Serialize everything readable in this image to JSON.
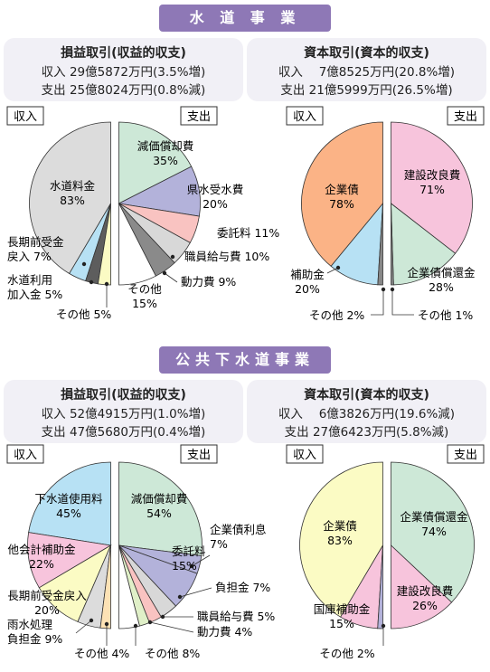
{
  "sections": [
    {
      "banner": "水 道 事 業",
      "panels": [
        {
          "title": "損益取引(収益的収支)",
          "income_line": "収入 29億5872万円(3.5%増)",
          "expense_line": "支出 25億8024万円(0.8%減)"
        },
        {
          "title": "資本取引(資本的収支)",
          "income_line": "収入　 7億8525万円(20.8%増)",
          "expense_line": "支出 21億5999万円(26.5%増)"
        }
      ]
    },
    {
      "banner": "公共下水道事業",
      "panels": [
        {
          "title": "損益取引(収益的収支)",
          "income_line": "収入 52億4915万円(1.0%増)",
          "expense_line": "支出 47億5680万円(0.4%増)"
        },
        {
          "title": "資本取引(資本的収支)",
          "income_line": "収入　 6億3826万円(19.6%減)",
          "expense_line": "支出 27億6423万円(5.8%減)"
        }
      ]
    }
  ],
  "labels": {
    "income": "収入",
    "expense": "支出"
  },
  "chart_data": [
    {
      "type": "pie",
      "title": "水道事業 損益取引(収益的収支)",
      "income": [
        {
          "name": "水道料金",
          "value": 83,
          "color": "#dcdcdc"
        },
        {
          "name": "長期前受金戻入",
          "value": 7,
          "color": "#b7e1f4"
        },
        {
          "name": "水道利用加入金",
          "value": 5,
          "color": "#5d5d5d"
        },
        {
          "name": "その他",
          "value": 5,
          "color": "#fbfbc4"
        }
      ],
      "expense": [
        {
          "name": "減価償却費",
          "value": 35,
          "color": "#cde8d7"
        },
        {
          "name": "県水受水費",
          "value": 20,
          "color": "#b3b2da"
        },
        {
          "name": "委託料",
          "value": 11,
          "color": "#f9c3c1"
        },
        {
          "name": "職員給与費",
          "value": 10,
          "color": "#d8d8d8"
        },
        {
          "name": "動力費",
          "value": 9,
          "color": "#8a8a8a"
        },
        {
          "name": "その他",
          "value": 15,
          "color": "#ffffff"
        }
      ]
    },
    {
      "type": "pie",
      "title": "水道事業 資本取引(資本的収支)",
      "income": [
        {
          "name": "企業債",
          "value": 78,
          "color": "#fbb386"
        },
        {
          "name": "補助金",
          "value": 20,
          "color": "#b7e1f4"
        },
        {
          "name": "その他",
          "value": 2,
          "color": "#888888"
        }
      ],
      "expense": [
        {
          "name": "建設改良費",
          "value": 71,
          "color": "#f7c4dc"
        },
        {
          "name": "企業債償還金",
          "value": 28,
          "color": "#cde8d7"
        },
        {
          "name": "その他",
          "value": 1,
          "color": "#888888"
        }
      ]
    },
    {
      "type": "pie",
      "title": "公共下水道事業 損益取引(収益的収支)",
      "income": [
        {
          "name": "下水道使用料",
          "value": 45,
          "color": "#b7e1f4"
        },
        {
          "name": "他会計補助金",
          "value": 22,
          "color": "#f7c4dc"
        },
        {
          "name": "長期前受金戻入",
          "value": 20,
          "color": "#fbfbc4"
        },
        {
          "name": "雨水処理負担金",
          "value": 9,
          "color": "#dcdcdc"
        },
        {
          "name": "その他",
          "value": 4,
          "color": "#fde2b5"
        }
      ],
      "expense": [
        {
          "name": "減価償却費",
          "value": 54,
          "color": "#cde8d7"
        },
        {
          "name": "企業債利息",
          "value": 7,
          "color": "#b3b2da"
        },
        {
          "name": "委託料",
          "value": 15,
          "color": "#b3b2da"
        },
        {
          "name": "負担金",
          "value": 7,
          "color": "#d8d8d8"
        },
        {
          "name": "職員給与費",
          "value": 5,
          "color": "#f9c3c1"
        },
        {
          "name": "動力費",
          "value": 4,
          "color": "#e0f0c8"
        },
        {
          "name": "その他",
          "value": 8,
          "color": "#ffffff"
        }
      ]
    },
    {
      "type": "pie",
      "title": "公共下水道事業 資本取引(資本的収支)",
      "income": [
        {
          "name": "企業債",
          "value": 83,
          "color": "#fbfbc4"
        },
        {
          "name": "国庫補助金",
          "value": 15,
          "color": "#f7c4dc"
        },
        {
          "name": "その他",
          "value": 2,
          "color": "#b3b2da"
        }
      ],
      "expense": [
        {
          "name": "企業債償還金",
          "value": 74,
          "color": "#cde8d7"
        },
        {
          "name": "建設改良費",
          "value": 26,
          "color": "#f7c4dc"
        }
      ]
    }
  ]
}
